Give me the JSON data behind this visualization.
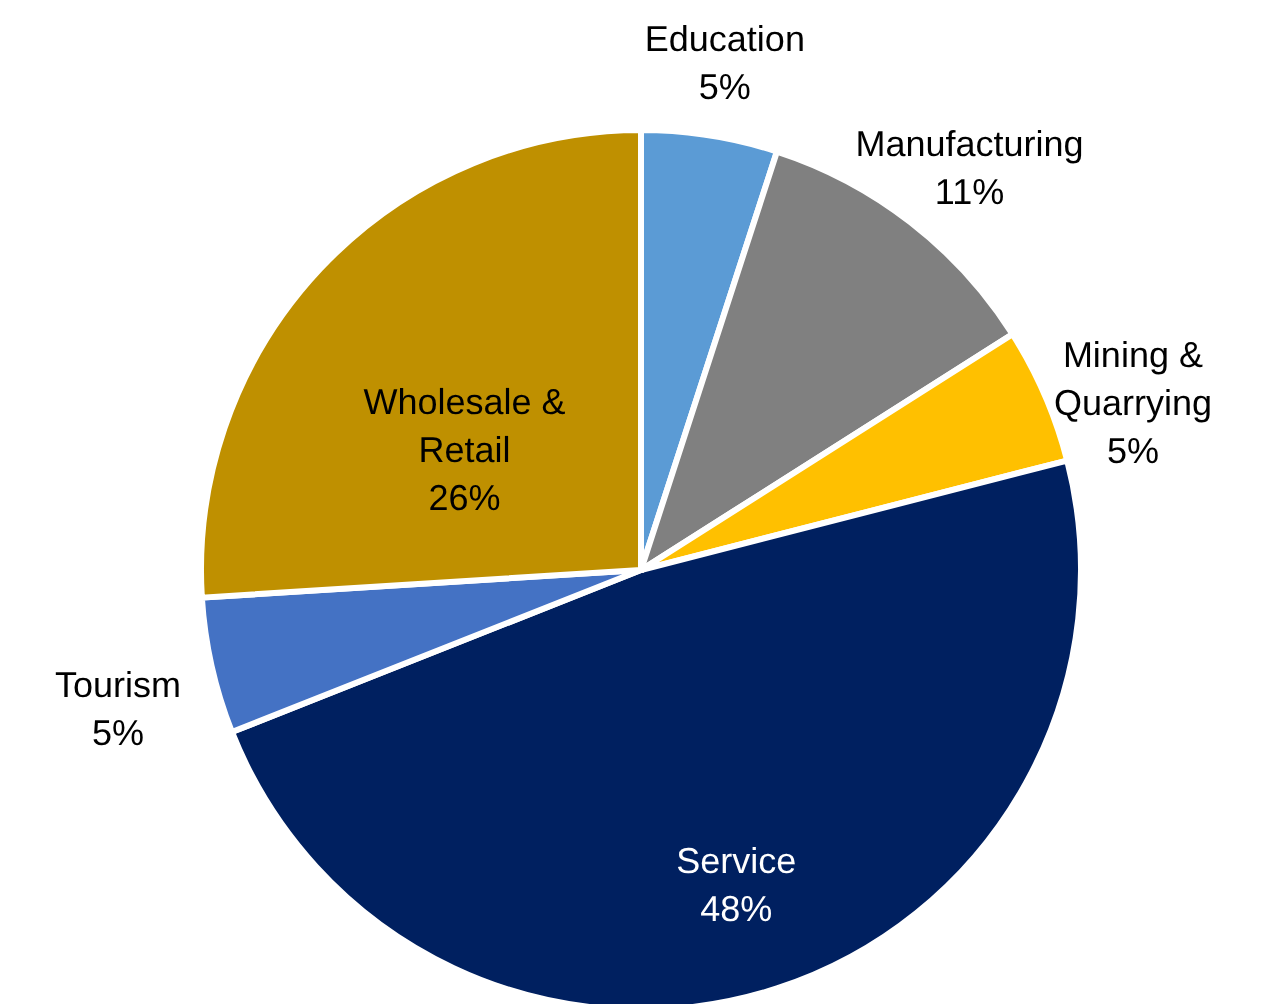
{
  "chart_data": {
    "type": "pie",
    "categories": [
      "Education",
      "Manufacturing",
      "Mining & Quarrying",
      "Service",
      "Tourism",
      "Wholesale & Retail"
    ],
    "values": [
      5,
      11,
      5,
      48,
      5,
      26
    ],
    "value_labels": [
      "5%",
      "11%",
      "5%",
      "48%",
      "5%",
      "26%"
    ],
    "colors": [
      "#5b9bd5",
      "#808080",
      "#ffc000",
      "#002060",
      "#4472c4",
      "#bf9000"
    ]
  }
}
